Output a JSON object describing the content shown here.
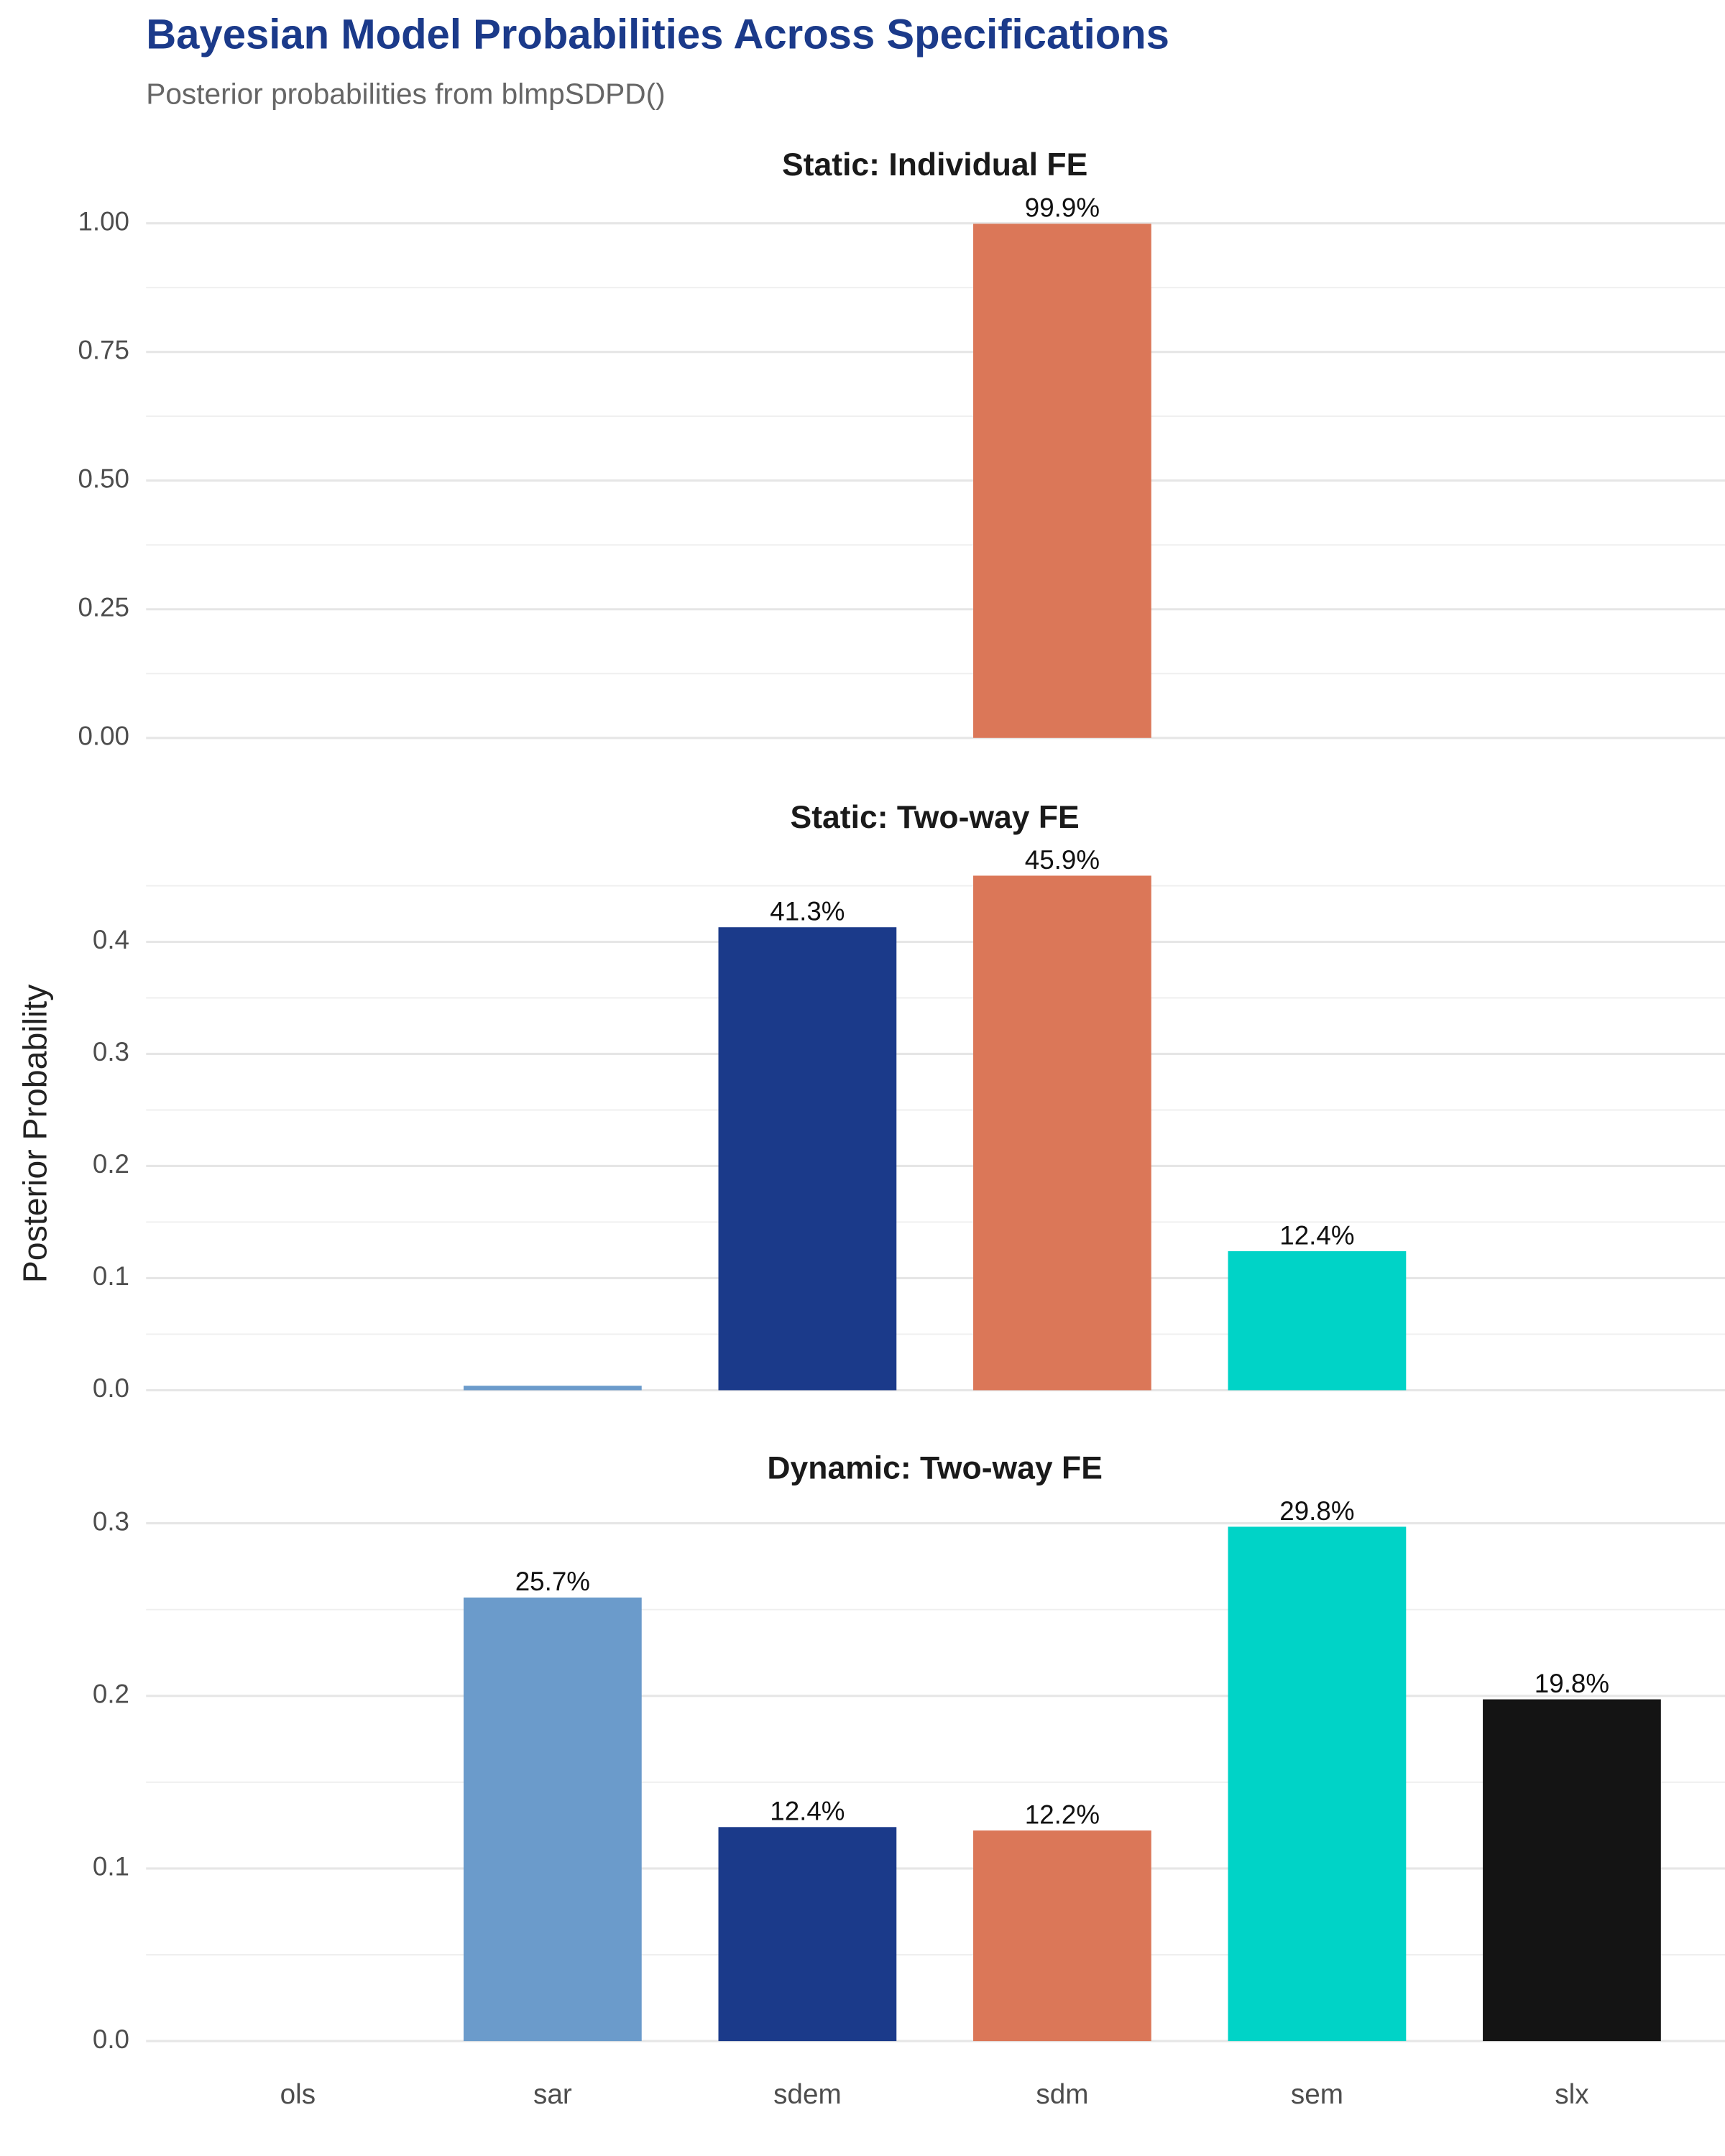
{
  "title": "Bayesian Model Probabilities Across Specifications",
  "subtitle": "Posterior probabilities from blmpSDPD()",
  "y_label": "Posterior Probability",
  "categories": [
    "ols",
    "sar",
    "sdem",
    "sdm",
    "sem",
    "slx"
  ],
  "colors": [
    null,
    "#6b9bcb",
    "#1b3a8a",
    "#db7758",
    "#00d3c7",
    "#141414"
  ],
  "grid": true,
  "chart_data": [
    {
      "type": "bar",
      "title": "Static: Individual FE",
      "values": [
        0,
        0,
        0,
        0.999,
        0,
        0
      ],
      "value_labels": [
        null,
        null,
        null,
        "99.9%",
        null,
        null
      ],
      "ylim": [
        -0.05,
        1.05
      ],
      "yticks": [
        {
          "value": 0,
          "label": "0.00"
        },
        {
          "value": 0.25,
          "label": "0.25"
        },
        {
          "value": 0.5,
          "label": "0.50"
        },
        {
          "value": 0.75,
          "label": "0.75"
        },
        {
          "value": 1,
          "label": "1.00"
        }
      ],
      "minor_yticks": [
        0.125,
        0.375,
        0.625,
        0.875
      ]
    },
    {
      "type": "bar",
      "title": "Static: Two-way FE",
      "values": [
        0,
        0.004,
        0.413,
        0.459,
        0.124,
        0
      ],
      "value_labels": [
        null,
        null,
        "41.3%",
        "45.9%",
        "12.4%",
        null
      ],
      "ylim": [
        -0.023,
        0.482
      ],
      "yticks": [
        {
          "value": 0,
          "label": "0.0"
        },
        0.1,
        0.2,
        0.3,
        0.4
      ],
      "minor_yticks": [
        0.05,
        0.15,
        0.25,
        0.35,
        0.45
      ]
    },
    {
      "type": "bar",
      "title": "Dynamic: Two-way FE",
      "values": [
        0,
        0.257,
        0.124,
        0.122,
        0.298,
        0.198
      ],
      "value_labels": [
        null,
        "25.7%",
        "12.4%",
        "12.2%",
        "29.8%",
        "19.8%"
      ],
      "ylim": [
        -0.015,
        0.313
      ],
      "yticks": [
        {
          "value": 0,
          "label": "0.0"
        },
        0.1,
        0.2,
        0.3
      ],
      "minor_yticks": [
        0.05,
        0.15,
        0.25
      ]
    }
  ]
}
